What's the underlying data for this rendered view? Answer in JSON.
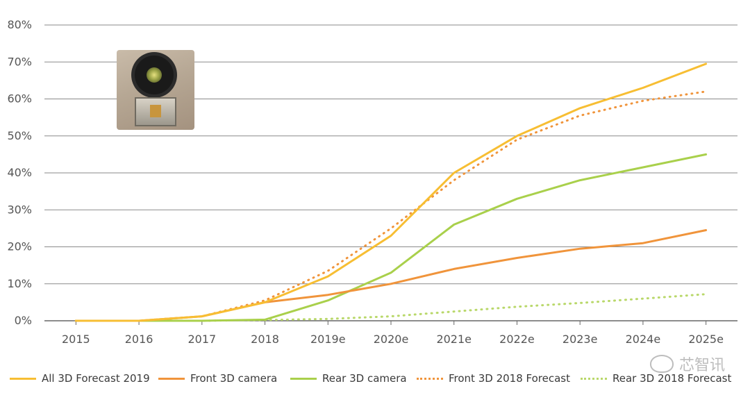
{
  "chart_data": {
    "type": "line",
    "x": [
      "2015",
      "2016",
      "2017",
      "2018",
      "2019e",
      "2020e",
      "2021e",
      "2022e",
      "2023e",
      "2024e",
      "2025e"
    ],
    "ylim": [
      0,
      80
    ],
    "yticks": [
      "0%",
      "10%",
      "20%",
      "30%",
      "40%",
      "50%",
      "60%",
      "70%",
      "80%"
    ],
    "grid": true,
    "legend_position": "bottom",
    "series": [
      {
        "name": "All 3D Forecast 2019",
        "color": "#F7BE33",
        "style": "solid",
        "values": [
          0,
          0,
          1.2,
          5,
          12,
          23,
          40,
          50,
          57.5,
          63,
          69.5
        ]
      },
      {
        "name": "Front 3D camera",
        "color": "#F0943B",
        "style": "solid",
        "values": [
          0,
          0,
          1.2,
          5,
          7,
          10,
          14,
          17,
          19.5,
          21,
          24.5
        ]
      },
      {
        "name": "Rear 3D camera",
        "color": "#A9D04B",
        "style": "solid",
        "values": [
          0,
          0,
          0,
          0.3,
          5.5,
          13,
          26,
          33,
          38,
          41.5,
          45
        ]
      },
      {
        "name": "Front 3D 2018 Forecast",
        "color": "#F0943B",
        "style": "dotted",
        "values": [
          0,
          0,
          1.2,
          5.5,
          13.5,
          25,
          38,
          49,
          55.5,
          59.5,
          62
        ]
      },
      {
        "name": "Rear 3D 2018 Forecast",
        "color": "#B9D86A",
        "style": "dotted",
        "values": [
          0,
          0,
          0,
          0.2,
          0.5,
          1.2,
          2.5,
          3.8,
          4.8,
          6,
          7.2
        ]
      }
    ]
  },
  "watermark": {
    "text": "芯智讯"
  }
}
